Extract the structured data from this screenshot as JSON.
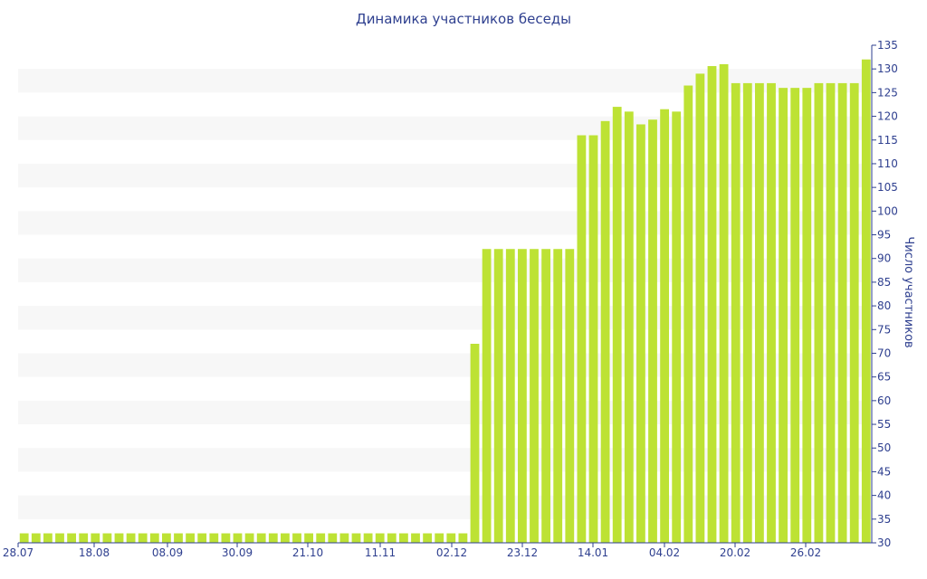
{
  "chart_data": {
    "type": "bar",
    "title": "Динамика участников беседы",
    "xlabel": "",
    "ylabel": "Число участников",
    "ylim": [
      30,
      135
    ],
    "y_ticks": [
      30,
      35,
      40,
      45,
      50,
      55,
      60,
      65,
      70,
      75,
      80,
      85,
      90,
      95,
      100,
      105,
      110,
      115,
      120,
      125,
      130,
      135
    ],
    "x_tick_labels": [
      "28.07",
      "18.08",
      "08.09",
      "30.09",
      "21.10",
      "11.11",
      "02.12",
      "23.12",
      "14.01",
      "04.02",
      "20.02",
      "26.02"
    ],
    "y_axis_position": "right",
    "grid": "horizontal bands",
    "colors": {
      "bar": "#bde234",
      "band": "#f7f7f7",
      "axis": "#2e3f8f",
      "text": "#2e3f8f"
    },
    "values": [
      32,
      32,
      32,
      32,
      32,
      32,
      32,
      32,
      32,
      32,
      32,
      32,
      32,
      32,
      32,
      32,
      32,
      32,
      32,
      32,
      32,
      32,
      32,
      32,
      32,
      32,
      32,
      32,
      32,
      32,
      32,
      32,
      32,
      32,
      32,
      32,
      32,
      32,
      72,
      92,
      92,
      92,
      92,
      92,
      92,
      92,
      92,
      116,
      116,
      119,
      122,
      121,
      118.3,
      119.3,
      121.5,
      121,
      126.5,
      129,
      130.6,
      131,
      127,
      127,
      127,
      127,
      126,
      126,
      126,
      127,
      127,
      127,
      127,
      132
    ]
  }
}
